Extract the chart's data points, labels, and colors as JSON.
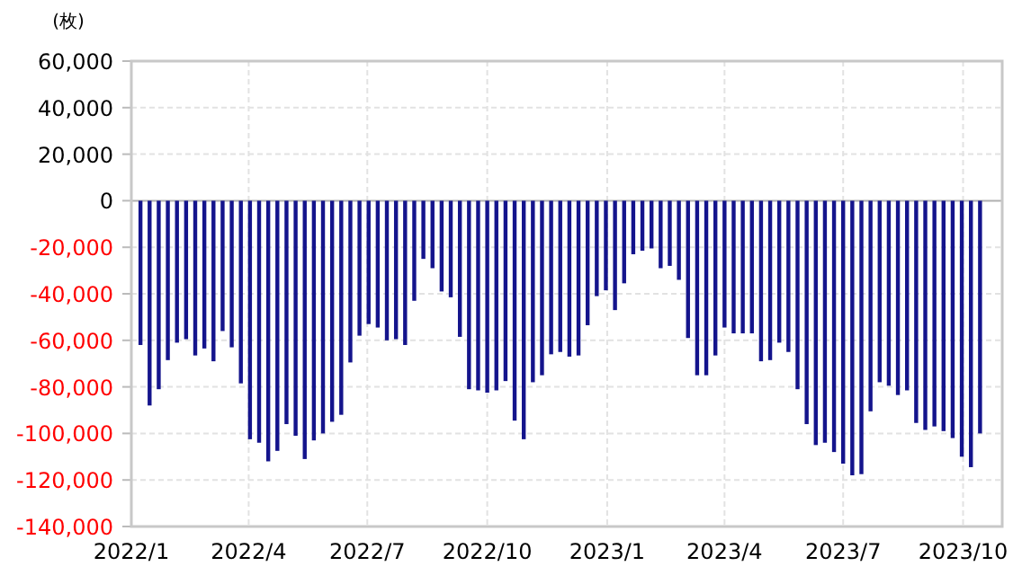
{
  "chart_data": {
    "type": "bar",
    "ylabel": "(枚)",
    "x": [
      "2022-01-08",
      "2022-01-15",
      "2022-01-22",
      "2022-01-29",
      "2022-02-05",
      "2022-02-12",
      "2022-02-19",
      "2022-02-26",
      "2022-03-05",
      "2022-03-12",
      "2022-03-19",
      "2022-03-26",
      "2022-04-02",
      "2022-04-09",
      "2022-04-16",
      "2022-04-23",
      "2022-04-30",
      "2022-05-07",
      "2022-05-14",
      "2022-05-21",
      "2022-05-28",
      "2022-06-04",
      "2022-06-11",
      "2022-06-18",
      "2022-06-25",
      "2022-07-02",
      "2022-07-09",
      "2022-07-16",
      "2022-07-23",
      "2022-07-30",
      "2022-08-06",
      "2022-08-13",
      "2022-08-20",
      "2022-08-27",
      "2022-09-03",
      "2022-09-10",
      "2022-09-17",
      "2022-09-24",
      "2022-10-01",
      "2022-10-08",
      "2022-10-15",
      "2022-10-22",
      "2022-10-29",
      "2022-11-05",
      "2022-11-12",
      "2022-11-19",
      "2022-11-26",
      "2022-12-03",
      "2022-12-10",
      "2022-12-17",
      "2022-12-24",
      "2022-12-31",
      "2023-01-07",
      "2023-01-14",
      "2023-01-21",
      "2023-01-28",
      "2023-02-04",
      "2023-02-11",
      "2023-02-18",
      "2023-02-25",
      "2023-03-04",
      "2023-03-11",
      "2023-03-18",
      "2023-03-25",
      "2023-04-01",
      "2023-04-08",
      "2023-04-15",
      "2023-04-22",
      "2023-04-29",
      "2023-05-06",
      "2023-05-13",
      "2023-05-20",
      "2023-05-27",
      "2023-06-03",
      "2023-06-10",
      "2023-06-17",
      "2023-06-24",
      "2023-07-01",
      "2023-07-08",
      "2023-07-15",
      "2023-07-22",
      "2023-07-29",
      "2023-08-05",
      "2023-08-12",
      "2023-08-19",
      "2023-08-26",
      "2023-09-02",
      "2023-09-09",
      "2023-09-16",
      "2023-09-23",
      "2023-09-30",
      "2023-10-07",
      "2023-10-14"
    ],
    "series": [
      {
        "color": "#14148c",
        "values": [
          -62000,
          -88000,
          -81000,
          -68500,
          -61000,
          -59500,
          -66500,
          -63500,
          -69000,
          -56000,
          -63000,
          -78500,
          -102500,
          -104000,
          -112000,
          -107500,
          -96000,
          -101000,
          -111000,
          -103000,
          -100000,
          -95000,
          -92000,
          -69500,
          -58000,
          -53000,
          -54500,
          -60000,
          -59500,
          -62000,
          -43000,
          -25000,
          -29000,
          -39000,
          -41500,
          -58500,
          -81000,
          -81500,
          -82500,
          -81500,
          -77500,
          -94500,
          -102500,
          -78000,
          -75000,
          -66000,
          -65000,
          -67000,
          -66500,
          -53500,
          -41000,
          -38500,
          -47000,
          -35500,
          -23000,
          -21500,
          -20500,
          -29000,
          -28000,
          -34000,
          -59000,
          -75000,
          -75000,
          -66500,
          -54500,
          -57000,
          -57000,
          -57000,
          -69000,
          -68500,
          -61000,
          -65000,
          -81000,
          -96000,
          -105000,
          -104000,
          -108000,
          -113000,
          -118000,
          -117500,
          -90500,
          -78000,
          -79500,
          -83500,
          -81500,
          -95500,
          -98500,
          -97000,
          -99000,
          -102000,
          -110000,
          -114500,
          -100000
        ]
      }
    ],
    "xlim": [
      "2022-01-01",
      "2023-10-31"
    ],
    "xticks": [
      {
        "value": "2022-01-01",
        "label": "2022/1"
      },
      {
        "value": "2022-04-01",
        "label": "2022/4"
      },
      {
        "value": "2022-07-01",
        "label": "2022/7"
      },
      {
        "value": "2022-10-01",
        "label": "2022/10"
      },
      {
        "value": "2023-01-01",
        "label": "2023/1"
      },
      {
        "value": "2023-04-01",
        "label": "2023/4"
      },
      {
        "value": "2023-07-01",
        "label": "2023/7"
      },
      {
        "value": "2023-10-01",
        "label": "2023/10"
      }
    ],
    "ylim": [
      -140000,
      60000
    ],
    "yticks": [
      {
        "value": 60000,
        "label": "60,000"
      },
      {
        "value": 40000,
        "label": "40,000"
      },
      {
        "value": 20000,
        "label": "20,000"
      },
      {
        "value": 0,
        "label": "0"
      },
      {
        "value": -20000,
        "label": "-20,000"
      },
      {
        "value": -40000,
        "label": "-40,000"
      },
      {
        "value": -60000,
        "label": "-60,000"
      },
      {
        "value": -80000,
        "label": "-80,000"
      },
      {
        "value": -100000,
        "label": "-100,000"
      },
      {
        "value": -120000,
        "label": "-120,000"
      },
      {
        "value": -140000,
        "label": "-140,000"
      }
    ],
    "grid": true
  }
}
